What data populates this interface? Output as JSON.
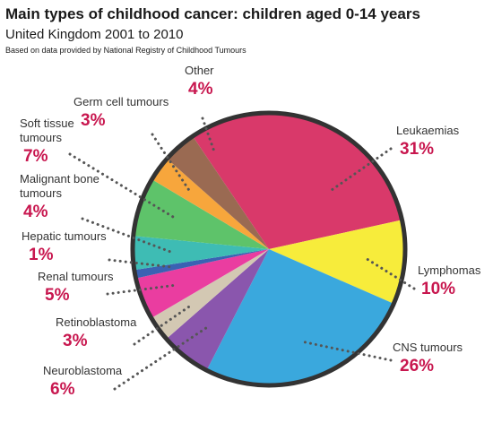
{
  "header": {
    "title": "Main types of childhood cancer: children aged 0-14 years",
    "subtitle": "United Kingdom 2001 to 2010",
    "source": "Based on data provided by National Registry of Childhood Tumours"
  },
  "colors": {
    "accent": "#c8174f",
    "outline": "#333333",
    "leader": "#555555"
  },
  "chart_data": {
    "type": "pie",
    "title": "Main types of childhood cancer: children aged 0-14 years",
    "unit": "%",
    "slices": [
      {
        "name": "Leukaemias",
        "value": 31,
        "label_lines": [
          "Leukaemias"
        ],
        "pct": "31%",
        "color": "#d9396a"
      },
      {
        "name": "Lymphomas",
        "value": 10,
        "label_lines": [
          "Lymphomas"
        ],
        "pct": "10%",
        "color": "#f7ec3b"
      },
      {
        "name": "CNS tumours",
        "value": 26,
        "label_lines": [
          "CNS tumours"
        ],
        "pct": "26%",
        "color": "#3aa8dd"
      },
      {
        "name": "Neuroblastoma",
        "value": 6,
        "label_lines": [
          "Neuroblastoma"
        ],
        "pct": "6%",
        "color": "#8a56ad"
      },
      {
        "name": "Retinoblastoma",
        "value": 3,
        "label_lines": [
          "Retinoblastoma"
        ],
        "pct": "3%",
        "color": "#d3c8b3"
      },
      {
        "name": "Renal tumours",
        "value": 5,
        "label_lines": [
          "Renal tumours"
        ],
        "pct": "5%",
        "color": "#ea3da0"
      },
      {
        "name": "Hepatic tumours",
        "value": 1,
        "label_lines": [
          "Hepatic tumours"
        ],
        "pct": "1%",
        "color": "#3a62b3"
      },
      {
        "name": "Malignant bone tumours",
        "value": 4,
        "label_lines": [
          "Malignant bone",
          "tumours"
        ],
        "pct": "4%",
        "color": "#3ebcb4"
      },
      {
        "name": "Soft tissue tumours",
        "value": 7,
        "label_lines": [
          "Soft tissue",
          "tumours"
        ],
        "pct": "7%",
        "color": "#5ec36a"
      },
      {
        "name": "Germ cell tumours",
        "value": 3,
        "label_lines": [
          "Germ cell tumours"
        ],
        "pct": "3%",
        "color": "#f7a63c"
      },
      {
        "name": "Other",
        "value": 4,
        "label_lines": [
          "Other"
        ],
        "pct": "4%",
        "color": "#9a6a52"
      }
    ]
  }
}
